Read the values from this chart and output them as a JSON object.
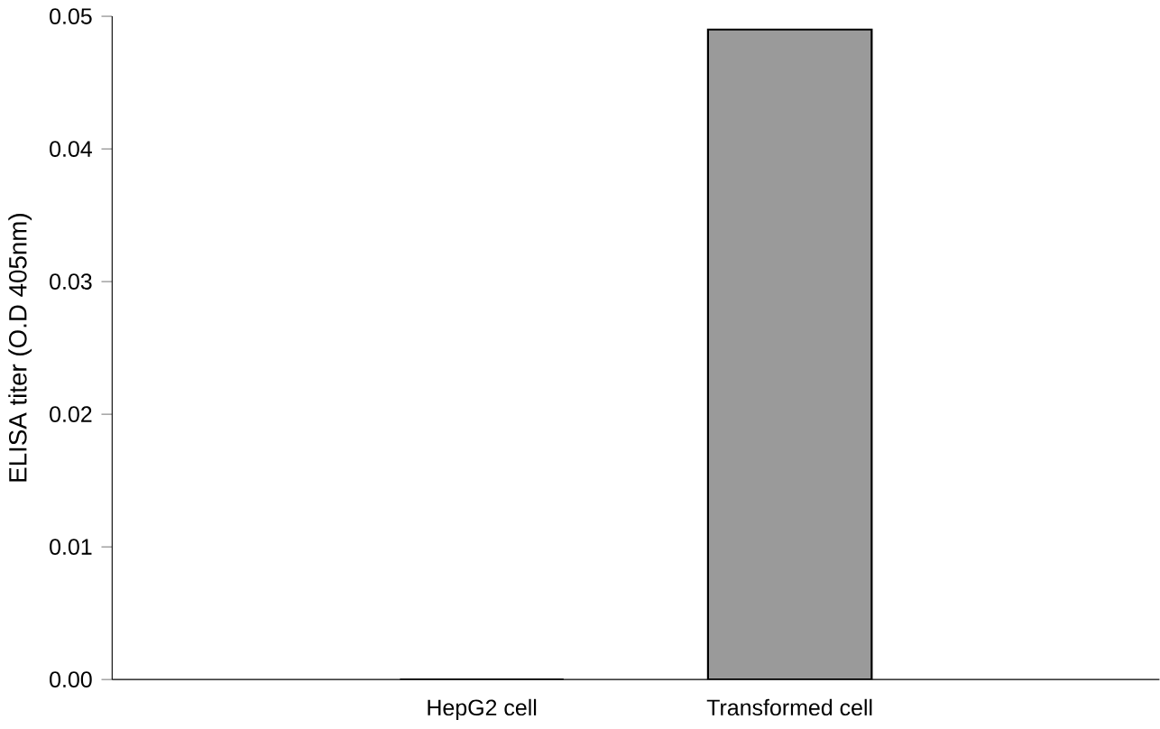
{
  "chart_data": {
    "type": "bar",
    "ylabel": "ELISA titer (O.D 405nm)",
    "categories": [
      "HepG2 cell",
      "Transformed cell"
    ],
    "values": [
      0,
      0.049
    ],
    "color": "#9a9a9a",
    "ylim": [
      0,
      0.05
    ],
    "yticks": [
      {
        "value": 0,
        "label": "0.00"
      },
      0.01,
      0.02,
      0.03,
      0.04,
      0.05
    ]
  }
}
